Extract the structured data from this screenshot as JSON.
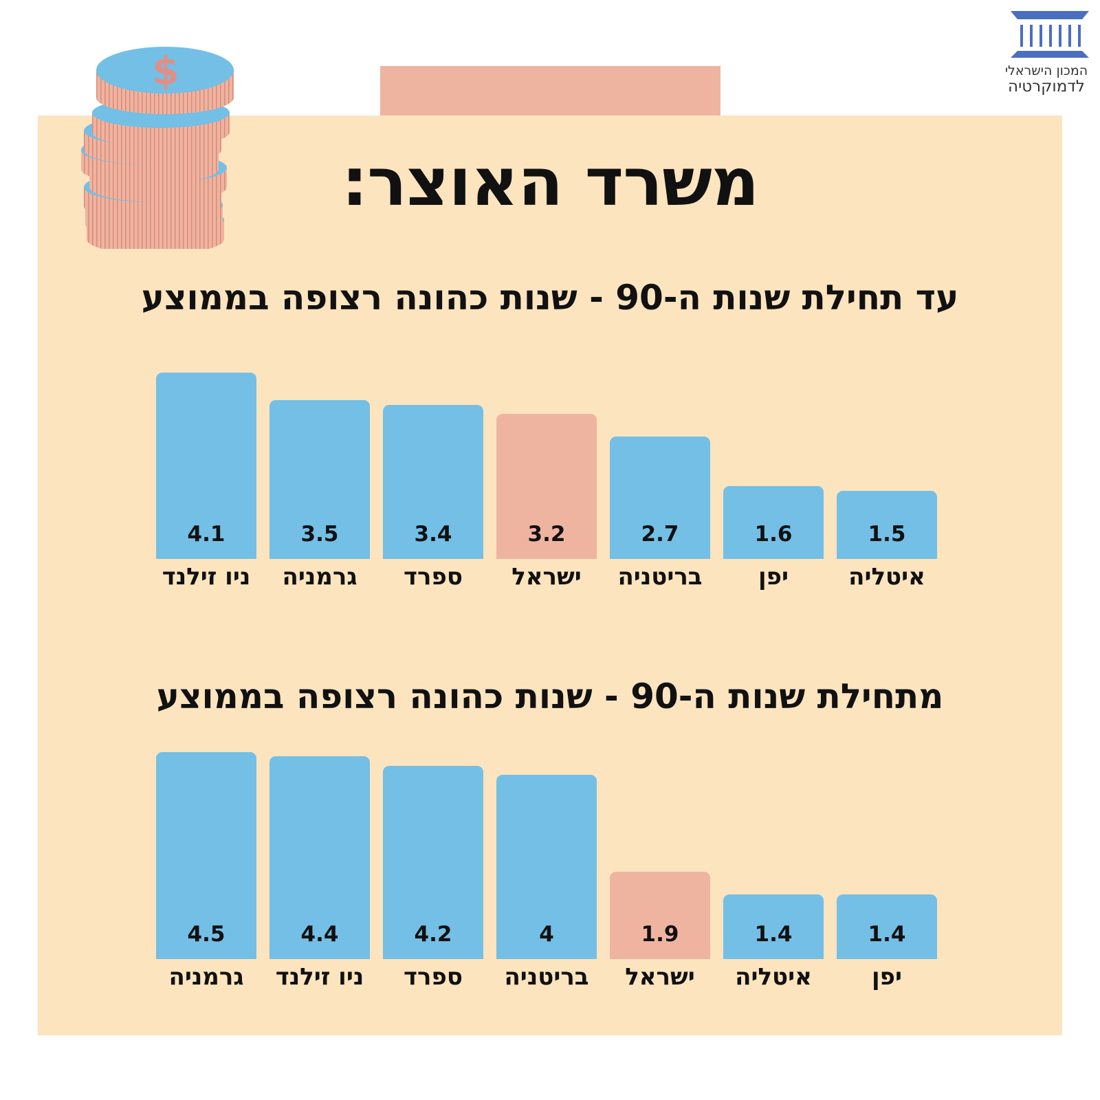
{
  "title": "משרד האוצר:",
  "logo": {
    "line1": "המכון הישראלי",
    "line2": "לדמוקרטיה"
  },
  "colors": {
    "panel": "#fce4bf",
    "bar": "#73bfe6",
    "highlight": "#efb4a0",
    "text": "#111111",
    "logo": "#4a6fbf"
  },
  "icons": [
    "dollar-coin-stack-icon",
    "institute-logo-icon"
  ],
  "chart_data": [
    {
      "type": "bar",
      "title": "עד תחילת שנות ה-90 - שנות כהונה רצופה בממוצע",
      "categories": [
        "ניו זילנד",
        "גרמניה",
        "ספרד",
        "ישראל",
        "בריטניה",
        "יפן",
        "איטליה"
      ],
      "values": [
        4.1,
        3.5,
        3.4,
        3.2,
        2.7,
        1.6,
        1.5
      ],
      "value_labels": [
        "4.1",
        "3.5",
        "3.4",
        "3.2",
        "2.7",
        "1.6",
        "1.5"
      ],
      "highlight": "ישראל",
      "grid": false
    },
    {
      "type": "bar",
      "title": "מתחילת שנות ה-90 - שנות כהונה רצופה בממוצע",
      "categories": [
        "גרמניה",
        "ניו זילנד",
        "ספרד",
        "בריטניה",
        "ישראל",
        "איטליה",
        "יפן"
      ],
      "values": [
        4.5,
        4.4,
        4.2,
        4,
        1.9,
        1.4,
        1.4
      ],
      "value_labels": [
        "4.5",
        "4.4",
        "4.2",
        "4",
        "1.9",
        "1.4",
        "1.4"
      ],
      "highlight": "ישראל",
      "grid": false
    }
  ]
}
